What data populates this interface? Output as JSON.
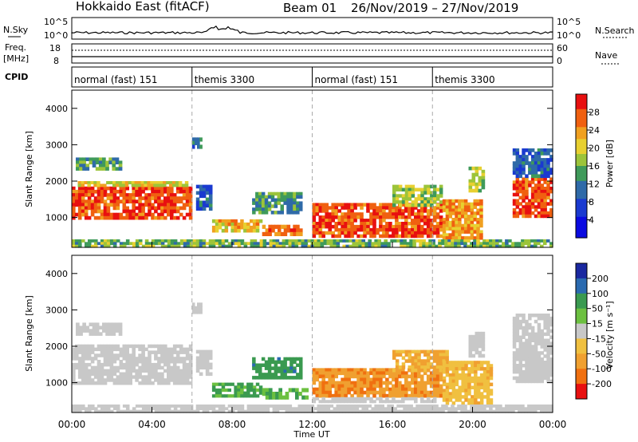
{
  "header": {
    "station": "Hokkaido East (fitACF)",
    "beam": "Beam 01",
    "dates": "26/Nov/2019 – 27/Nov/2019"
  },
  "strip": {
    "left_nsky": "N.Sky",
    "left_freq": "Freq.",
    "left_mhz": "[MHz]",
    "left_cpid": "CPID",
    "noise_ticks": [
      "10^5",
      "10^0"
    ],
    "freq_ticks": [
      "18",
      "8"
    ],
    "right_noise_ticks": [
      "10^5",
      "10^0"
    ],
    "right_nave_ticks": [
      "60",
      "0"
    ],
    "right_nsearch": "N.Search",
    "right_nave": "Nave",
    "cpid_blocks": [
      {
        "label": "normal (fast) 151",
        "start_h": 0,
        "end_h": 6
      },
      {
        "label": "themis 3300",
        "start_h": 6,
        "end_h": 12
      },
      {
        "label": "normal (fast) 151",
        "start_h": 12,
        "end_h": 18
      },
      {
        "label": "themis 3300",
        "start_h": 18,
        "end_h": 24
      }
    ]
  },
  "chart_data": [
    {
      "type": "heatmap",
      "parameter": "Power",
      "ylabel": "Slant Range [km]",
      "ylim": [
        180,
        4500
      ],
      "yticks": [
        1000,
        2000,
        3000,
        4000
      ],
      "colorbar": {
        "label": "Power [dB]",
        "range": [
          0,
          32
        ],
        "ticks": [
          4,
          8,
          12,
          16,
          20,
          24,
          28
        ]
      },
      "regions": [
        {
          "t0": 0.0,
          "t1": 6.0,
          "r0": 950,
          "r1": 1850,
          "level": 28
        },
        {
          "t0": 0.3,
          "t1": 5.8,
          "r0": 1850,
          "r1": 2000,
          "level": 20
        },
        {
          "t0": 0.2,
          "t1": 2.5,
          "r0": 2300,
          "r1": 2650,
          "level": 14
        },
        {
          "t0": 6.0,
          "t1": 6.5,
          "r0": 2900,
          "r1": 3200,
          "level": 10
        },
        {
          "t0": 6.2,
          "t1": 7.0,
          "r0": 1200,
          "r1": 1900,
          "level": 10
        },
        {
          "t0": 7.0,
          "t1": 9.5,
          "r0": 600,
          "r1": 950,
          "level": 22
        },
        {
          "t0": 9.0,
          "t1": 11.5,
          "r0": 1100,
          "r1": 1700,
          "level": 14
        },
        {
          "t0": 9.5,
          "t1": 11.5,
          "r0": 500,
          "r1": 800,
          "level": 26
        },
        {
          "t0": 12.0,
          "t1": 18.5,
          "r0": 450,
          "r1": 1400,
          "level": 28
        },
        {
          "t0": 16.0,
          "t1": 18.5,
          "r0": 1300,
          "r1": 1900,
          "level": 18
        },
        {
          "t0": 18.5,
          "t1": 20.5,
          "r0": 400,
          "r1": 1500,
          "level": 24
        },
        {
          "t0": 19.8,
          "t1": 20.6,
          "r0": 1700,
          "r1": 2400,
          "level": 18
        },
        {
          "t0": 22.0,
          "t1": 24.0,
          "r0": 1000,
          "r1": 2100,
          "level": 28
        },
        {
          "t0": 22.0,
          "t1": 24.0,
          "r0": 2100,
          "r1": 2900,
          "level": 10
        },
        {
          "t0": 0.0,
          "t1": 24.0,
          "r0": 180,
          "r1": 400,
          "level": 16
        }
      ]
    },
    {
      "type": "heatmap",
      "parameter": "Velocity",
      "ylabel": "Slant Range [km]",
      "ylim": [
        180,
        4500
      ],
      "yticks": [
        1000,
        2000,
        3000,
        4000
      ],
      "colorbar": {
        "label": "Velocity [m s⁻¹]",
        "range": [
          -250,
          250
        ],
        "ticks": [
          200,
          100,
          50,
          15,
          -15,
          -50,
          -100,
          -200
        ]
      },
      "regions": [
        {
          "t0": 0.0,
          "t1": 6.0,
          "r0": 950,
          "r1": 2050,
          "level": 0
        },
        {
          "t0": 0.2,
          "t1": 2.5,
          "r0": 2300,
          "r1": 2650,
          "level": 0
        },
        {
          "t0": 6.0,
          "t1": 6.5,
          "r0": 2900,
          "r1": 3200,
          "level": 0
        },
        {
          "t0": 6.2,
          "t1": 7.0,
          "r0": 1200,
          "r1": 1900,
          "level": 0
        },
        {
          "t0": 7.0,
          "t1": 9.5,
          "r0": 600,
          "r1": 1000,
          "level": 40
        },
        {
          "t0": 9.0,
          "t1": 11.5,
          "r0": 1100,
          "r1": 1700,
          "level": 60
        },
        {
          "t0": 9.5,
          "t1": 11.8,
          "r0": 550,
          "r1": 850,
          "level": 30
        },
        {
          "t0": 12.0,
          "t1": 18.5,
          "r0": 600,
          "r1": 1400,
          "level": -70
        },
        {
          "t0": 12.0,
          "t1": 18.5,
          "r0": 450,
          "r1": 600,
          "level": 0
        },
        {
          "t0": 16.0,
          "t1": 18.8,
          "r0": 1300,
          "r1": 1900,
          "level": -40
        },
        {
          "t0": 18.5,
          "t1": 21.0,
          "r0": 400,
          "r1": 1600,
          "level": -30
        },
        {
          "t0": 19.8,
          "t1": 20.6,
          "r0": 1700,
          "r1": 2400,
          "level": 0
        },
        {
          "t0": 22.0,
          "t1": 24.0,
          "r0": 1000,
          "r1": 2900,
          "level": 0
        },
        {
          "t0": 0.0,
          "t1": 24.0,
          "r0": 180,
          "r1": 400,
          "level": 0
        }
      ]
    }
  ],
  "xaxis": {
    "label": "Time UT",
    "ticks": [
      "00:00",
      "04:00",
      "08:00",
      "12:00",
      "16:00",
      "20:00",
      "00:00"
    ]
  }
}
